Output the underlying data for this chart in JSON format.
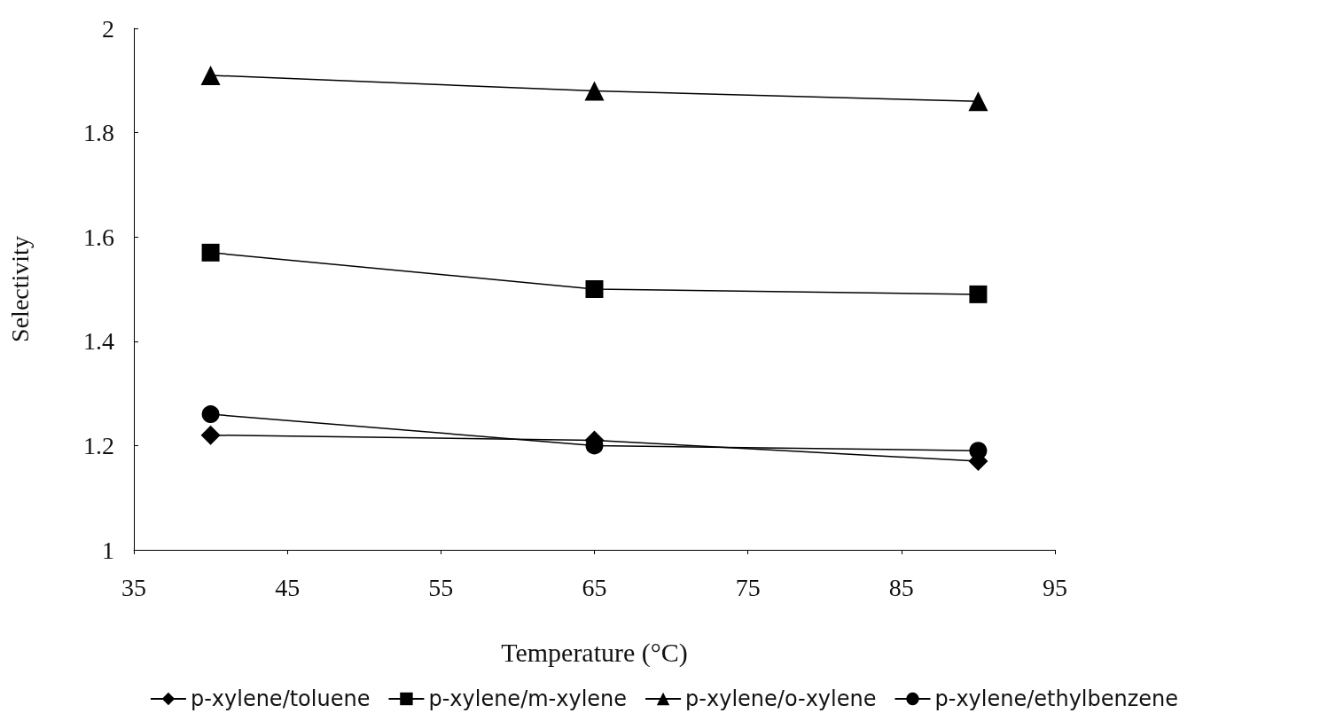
{
  "chart_data": {
    "type": "line",
    "xlabel": "Temperature (°C)",
    "ylabel": "Selectivity",
    "x": [
      40,
      65,
      90
    ],
    "series": [
      {
        "name": "p-xylene/toluene",
        "color": "#000000",
        "marker": "diamond",
        "values": [
          1.22,
          1.21,
          1.17
        ]
      },
      {
        "name": "p-xylene/m-xylene",
        "color": "#000000",
        "marker": "square",
        "values": [
          1.57,
          1.5,
          1.49
        ]
      },
      {
        "name": "p-xylene/o-xylene",
        "color": "#000000",
        "marker": "triangle",
        "values": [
          1.91,
          1.88,
          1.86
        ]
      },
      {
        "name": "p-xylene/ethylbenzene",
        "color": "#000000",
        "marker": "circle",
        "values": [
          1.26,
          1.2,
          1.19
        ]
      }
    ],
    "xlim": [
      35,
      95
    ],
    "xticks": [
      35,
      45,
      55,
      65,
      75,
      85,
      95
    ],
    "ylim": [
      1,
      2
    ],
    "yticks": [
      1,
      1.2,
      1.4,
      1.6,
      1.8,
      2
    ],
    "grid": false,
    "legend": "bottom",
    "line_style": "solid"
  }
}
